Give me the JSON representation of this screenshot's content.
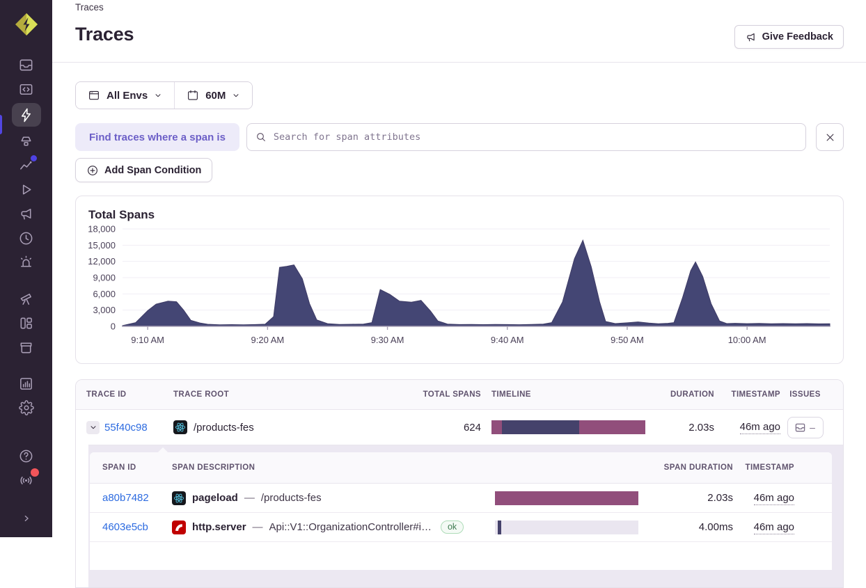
{
  "colors": {
    "plum": "#914E7B",
    "navy": "#45426B",
    "track": "#EAE6F0",
    "chart_fill": "#444674",
    "accent_purple": "#6C5FC7",
    "link_blue": "#2D6BE0",
    "sidebar_bg": "#2B2233",
    "active_indicator": "#5246E2"
  },
  "sidebar": {
    "active_item": "traces",
    "items": [
      {
        "name": "issues"
      },
      {
        "name": "projects"
      },
      {
        "name": "traces"
      },
      {
        "name": "profiling"
      },
      {
        "name": "insights",
        "badge": "blue-dot"
      },
      {
        "name": "replays"
      },
      {
        "name": "feedback"
      },
      {
        "name": "crons"
      },
      {
        "name": "alerts"
      },
      {
        "name": "discover"
      },
      {
        "name": "dashboards"
      },
      {
        "name": "releases"
      },
      {
        "name": "stats"
      },
      {
        "name": "settings"
      },
      {
        "name": "help"
      },
      {
        "name": "whats-new",
        "badge": "red-dot"
      },
      {
        "name": "collapse"
      }
    ]
  },
  "breadcrumb": "Traces",
  "page": {
    "title": "Traces",
    "feedback_label": "Give Feedback"
  },
  "filters": {
    "env_label": "All Envs",
    "time_label": "60M"
  },
  "search": {
    "prefix_label": "Find traces where a span is",
    "placeholder": "Search for span attributes",
    "add_condition_label": "Add Span Condition"
  },
  "chart_data": {
    "type": "area",
    "title": "Total Spans",
    "xlabel": "",
    "ylabel": "",
    "ylim": [
      0,
      18000
    ],
    "y_ticks": [
      0,
      3000,
      6000,
      9000,
      12000,
      15000,
      18000
    ],
    "xlim_minutes_from_910am": [
      -2.1,
      56.9
    ],
    "x_ticks": [
      {
        "offset": 0,
        "label": "9:10 AM"
      },
      {
        "offset": 10,
        "label": "9:20 AM"
      },
      {
        "offset": 20,
        "label": "9:30 AM"
      },
      {
        "offset": 30,
        "label": "9:40 AM"
      },
      {
        "offset": 40,
        "label": "9:50 AM"
      },
      {
        "offset": 50,
        "label": "10:00 AM"
      }
    ],
    "points": [
      [
        -2.1,
        140
      ],
      [
        -1,
        700
      ],
      [
        0,
        2900
      ],
      [
        0.7,
        4100
      ],
      [
        1.7,
        4650
      ],
      [
        2.4,
        4550
      ],
      [
        3,
        3000
      ],
      [
        3.6,
        1100
      ],
      [
        4.4,
        600
      ],
      [
        5,
        380
      ],
      [
        6,
        300
      ],
      [
        7,
        320
      ],
      [
        8,
        300
      ],
      [
        9,
        330
      ],
      [
        9.8,
        400
      ],
      [
        10.5,
        1800
      ],
      [
        11,
        10900
      ],
      [
        11.6,
        11100
      ],
      [
        12.2,
        11350
      ],
      [
        12.9,
        8800
      ],
      [
        13.5,
        4200
      ],
      [
        14.1,
        1200
      ],
      [
        15,
        500
      ],
      [
        16,
        350
      ],
      [
        17,
        380
      ],
      [
        18,
        420
      ],
      [
        18.7,
        700
      ],
      [
        19.4,
        6800
      ],
      [
        20.2,
        5900
      ],
      [
        21,
        4650
      ],
      [
        22,
        4480
      ],
      [
        22.8,
        4800
      ],
      [
        23.6,
        2800
      ],
      [
        24.2,
        1000
      ],
      [
        25,
        420
      ],
      [
        26,
        330
      ],
      [
        27,
        360
      ],
      [
        28,
        320
      ],
      [
        29,
        360
      ],
      [
        30,
        330
      ],
      [
        31,
        310
      ],
      [
        32,
        360
      ],
      [
        33,
        420
      ],
      [
        33.7,
        700
      ],
      [
        34.6,
        4500
      ],
      [
        35.6,
        12500
      ],
      [
        36.3,
        15900
      ],
      [
        37,
        11000
      ],
      [
        37.7,
        4500
      ],
      [
        38.2,
        900
      ],
      [
        39,
        520
      ],
      [
        40,
        650
      ],
      [
        40.9,
        820
      ],
      [
        41.8,
        600
      ],
      [
        42.6,
        480
      ],
      [
        43.4,
        560
      ],
      [
        43.9,
        700
      ],
      [
        44.6,
        5200
      ],
      [
        45.3,
        10300
      ],
      [
        45.7,
        11900
      ],
      [
        46.3,
        9200
      ],
      [
        47,
        4200
      ],
      [
        47.7,
        1000
      ],
      [
        48.3,
        520
      ],
      [
        49,
        560
      ],
      [
        50,
        500
      ],
      [
        51,
        540
      ],
      [
        52,
        480
      ],
      [
        53,
        520
      ],
      [
        54,
        470
      ],
      [
        55,
        520
      ],
      [
        56,
        460
      ],
      [
        56.9,
        480
      ]
    ]
  },
  "trace_table": {
    "columns": [
      "Trace ID",
      "Trace Root",
      "Total Spans",
      "Timeline",
      "Duration",
      "Timestamp",
      "Issues"
    ],
    "rows": [
      {
        "trace_id": "55f40c98",
        "root_platform_icon": "react",
        "root_label": "/products-fes",
        "total_spans": "624",
        "timeline": {
          "segments": [
            {
              "color": "plum",
              "pct": 6.8
            },
            {
              "color": "navy",
              "pct": 50.2
            },
            {
              "color": "plum",
              "pct": 43.0
            }
          ]
        },
        "duration": "2.03s",
        "timestamp": "46m ago",
        "issues": "–"
      }
    ]
  },
  "span_table": {
    "columns": [
      "Span ID",
      "Span Description",
      "Span Duration",
      "Timestamp"
    ],
    "rows": [
      {
        "span_id": "a80b7482",
        "platform_icon": "react",
        "op": "pageload",
        "separator": "—",
        "description": "/products-fes",
        "status": "",
        "timeline": {
          "segments": [
            {
              "color": "plum",
              "pct": 100
            }
          ]
        },
        "duration": "2.03s",
        "timestamp": "46m ago"
      },
      {
        "span_id": "4603e5cb",
        "platform_icon": "rails",
        "op": "http.server",
        "separator": "—",
        "description": "Api::V1::OrganizationController#i…",
        "status": "ok",
        "timeline": {
          "track": true,
          "segments": [
            {
              "color": "navy",
              "pct": 2.4,
              "offset_pct": 1.8
            }
          ]
        },
        "duration": "4.00ms",
        "timestamp": "46m ago"
      }
    ]
  }
}
